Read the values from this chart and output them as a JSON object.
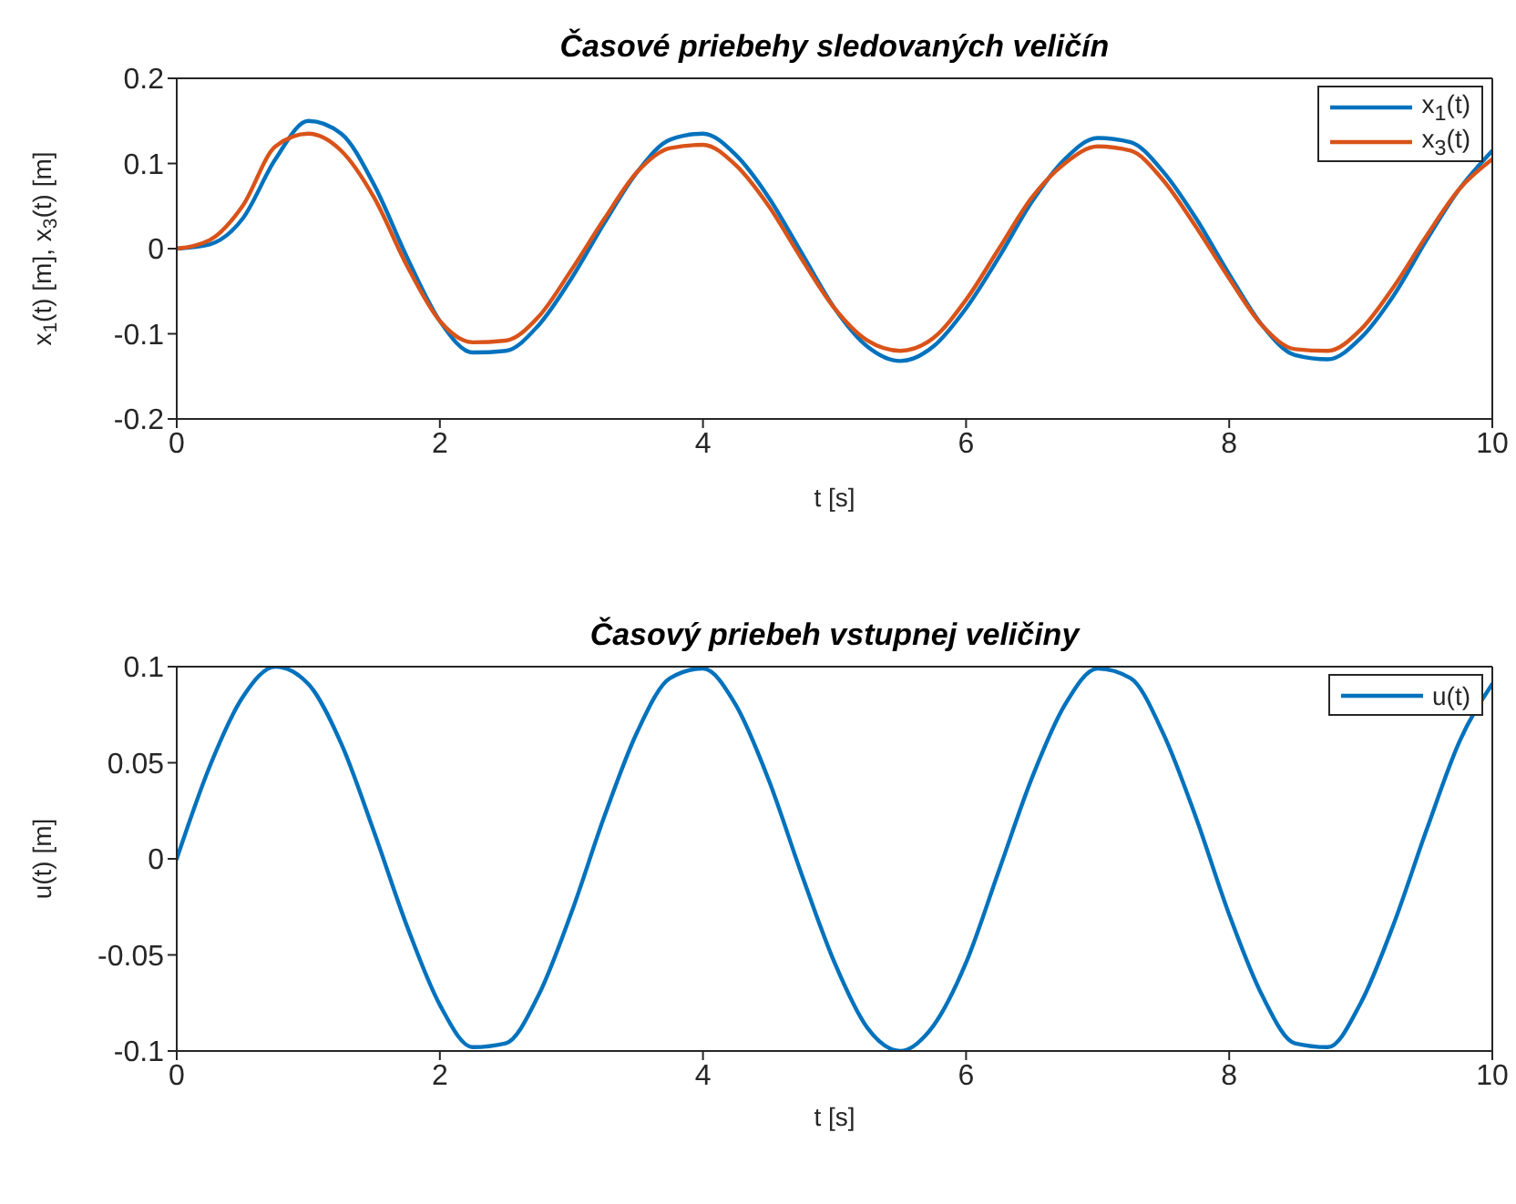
{
  "chart_data": [
    {
      "type": "line",
      "title": "Časové priebehy sledovaných veličín",
      "xlabel": "t [s]",
      "ylabel": "x$_{1}$(t) [m], x$_{3}$(t) [m]",
      "xlim": [
        0,
        10
      ],
      "xticks": [
        0,
        2,
        4,
        6,
        8,
        10
      ],
      "ylim": [
        -0.2,
        0.2
      ],
      "yticks": [
        -0.2,
        -0.1,
        0,
        0.1,
        0.2
      ],
      "grid": false,
      "legend": "top right",
      "marker": "none",
      "line_style": "solid",
      "x": [
        0,
        0.25,
        0.5,
        0.75,
        1,
        1.25,
        1.5,
        1.75,
        2,
        2.25,
        2.5,
        2.75,
        3,
        3.25,
        3.5,
        3.75,
        4,
        4.25,
        4.5,
        4.75,
        5,
        5.25,
        5.5,
        5.75,
        6,
        6.25,
        6.5,
        6.75,
        7,
        7.25,
        7.5,
        7.75,
        8,
        8.25,
        8.5,
        8.75,
        9,
        9.25,
        9.5,
        9.75,
        10
      ],
      "series": [
        {
          "name": "x$_{1}$(t)",
          "color": "#0072bd",
          "values": [
            0,
            0.005,
            0.035,
            0.105,
            0.15,
            0.135,
            0.075,
            -0.01,
            -0.085,
            -0.122,
            -0.12,
            -0.09,
            -0.035,
            0.03,
            0.09,
            0.128,
            0.135,
            0.11,
            0.06,
            -0.005,
            -0.07,
            -0.115,
            -0.132,
            -0.115,
            -0.07,
            -0.01,
            0.055,
            0.105,
            0.13,
            0.125,
            0.09,
            0.035,
            -0.03,
            -0.09,
            -0.125,
            -0.13,
            -0.105,
            -0.055,
            0.01,
            0.07,
            0.115
          ]
        },
        {
          "name": "x$_{3}$(t)",
          "color": "#d95319",
          "values": [
            0,
            0.01,
            0.05,
            0.12,
            0.135,
            0.115,
            0.06,
            -0.02,
            -0.085,
            -0.11,
            -0.108,
            -0.08,
            -0.025,
            0.035,
            0.09,
            0.118,
            0.122,
            0.098,
            0.05,
            -0.012,
            -0.07,
            -0.108,
            -0.12,
            -0.105,
            -0.06,
            0,
            0.06,
            0.1,
            0.12,
            0.115,
            0.08,
            0.025,
            -0.035,
            -0.09,
            -0.118,
            -0.12,
            -0.095,
            -0.045,
            0.015,
            0.07,
            0.105
          ]
        }
      ]
    },
    {
      "type": "line",
      "title": "Časový priebeh vstupnej veličiny",
      "xlabel": "t [s]",
      "ylabel": "u(t) [m]",
      "xlim": [
        0,
        10
      ],
      "xticks": [
        0,
        2,
        4,
        6,
        8,
        10
      ],
      "ylim": [
        -0.1,
        0.1
      ],
      "yticks": [
        -0.1,
        -0.05,
        0,
        0.05,
        0.1
      ],
      "grid": false,
      "legend": "top right",
      "marker": "none",
      "line_style": "solid",
      "x": [
        0,
        0.25,
        0.5,
        0.75,
        1,
        1.25,
        1.5,
        1.75,
        2,
        2.25,
        2.5,
        2.75,
        3,
        3.25,
        3.5,
        3.75,
        4,
        4.25,
        4.5,
        4.75,
        5,
        5.25,
        5.5,
        5.75,
        6,
        6.25,
        6.5,
        6.75,
        7,
        7.25,
        7.5,
        7.75,
        8,
        8.25,
        8.5,
        8.75,
        9,
        9.25,
        9.5,
        9.75,
        10
      ],
      "series": [
        {
          "name": "u(t)",
          "color": "#0072bd",
          "values": [
            0,
            0.048,
            0.084,
            0.1,
            0.091,
            0.06,
            0.014,
            -0.035,
            -0.076,
            -0.098,
            -0.096,
            -0.071,
            -0.028,
            0.022,
            0.066,
            0.094,
            0.099,
            0.08,
            0.041,
            -0.008,
            -0.054,
            -0.088,
            -0.1,
            -0.087,
            -0.054,
            -0.006,
            0.042,
            0.08,
            0.099,
            0.094,
            0.065,
            0.021,
            -0.029,
            -0.071,
            -0.096,
            -0.098,
            -0.075,
            -0.034,
            0.015,
            0.061,
            0.091
          ]
        }
      ]
    }
  ]
}
